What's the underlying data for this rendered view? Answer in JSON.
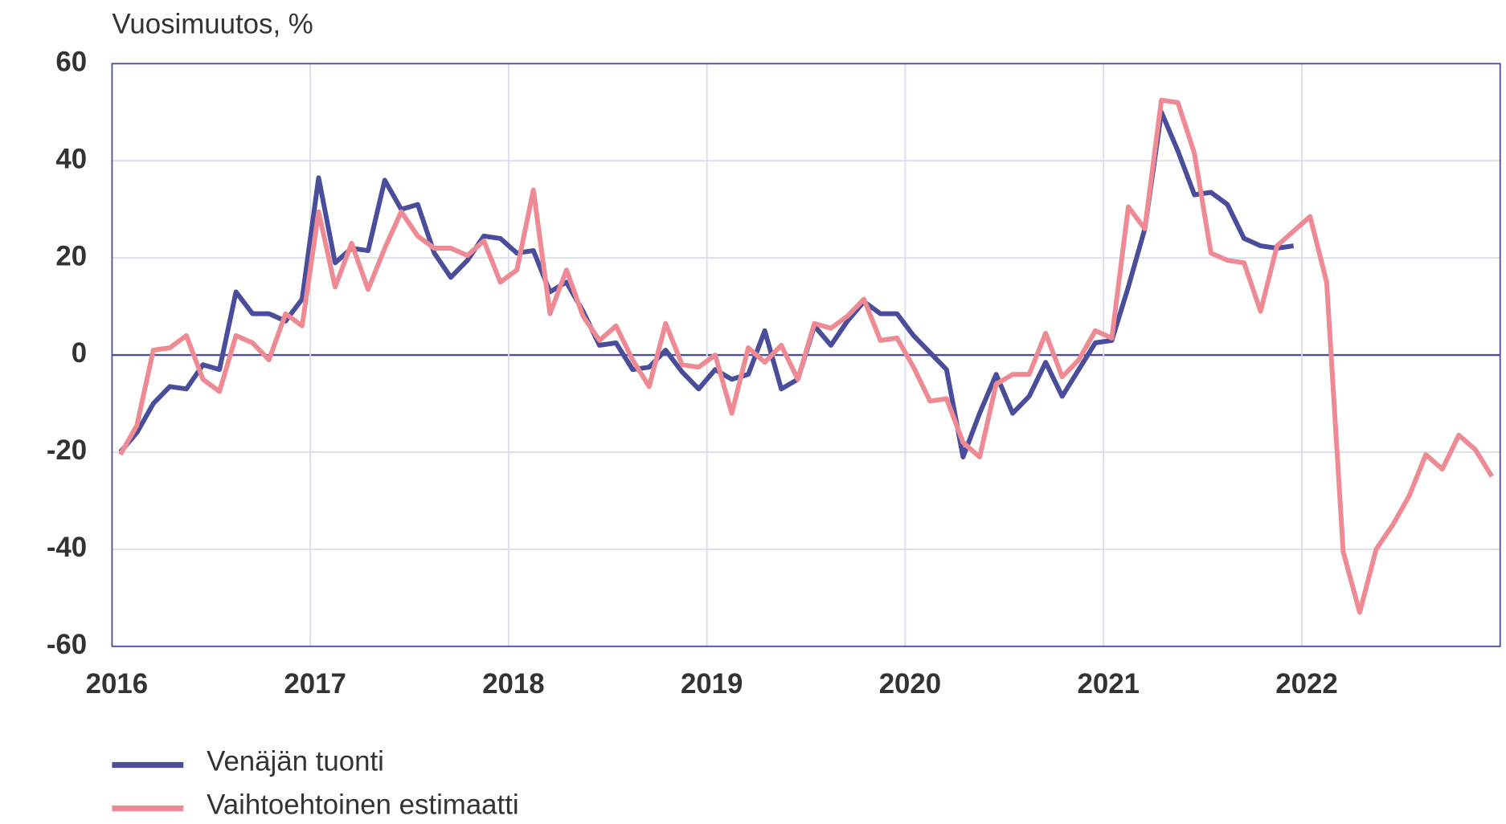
{
  "chart_data": {
    "type": "line",
    "y_label": "Vuosimuutos,  %",
    "categories": [
      "2016",
      null,
      null,
      null,
      null,
      null,
      null,
      null,
      null,
      null,
      null,
      null,
      "2017",
      null,
      null,
      null,
      null,
      null,
      null,
      null,
      null,
      null,
      null,
      null,
      "2018",
      null,
      null,
      null,
      null,
      null,
      null,
      null,
      null,
      null,
      null,
      null,
      "2019",
      null,
      null,
      null,
      null,
      null,
      null,
      null,
      null,
      null,
      null,
      null,
      "2020",
      null,
      null,
      null,
      null,
      null,
      null,
      null,
      null,
      null,
      null,
      null,
      "2021",
      null,
      null,
      null,
      null,
      null,
      null,
      null,
      null,
      null,
      null,
      null,
      "2022",
      null,
      null,
      null,
      null,
      null,
      null,
      null,
      null,
      null,
      null,
      null
    ],
    "series": [
      {
        "name": "Venäjän tuonti",
        "color": "#4a4e9a",
        "values": [
          -20,
          -16,
          -10,
          -6.5,
          -7,
          -2,
          -3,
          13,
          8.5,
          8.5,
          7,
          11.5,
          36.5,
          19,
          22,
          21.5,
          36,
          30,
          31,
          21,
          16,
          19.5,
          24.5,
          24,
          21,
          21.5,
          13,
          15,
          9,
          2,
          2.5,
          -3,
          -2.5,
          1,
          -3.5,
          -7,
          -3,
          -5,
          -4,
          5,
          -7,
          -5,
          6,
          2,
          7,
          11,
          8.5,
          8.5,
          4,
          0.5,
          -3,
          -21,
          -12,
          -4,
          -12,
          -8.5,
          -1.5,
          -8.5,
          -3,
          2.5,
          3,
          14,
          26,
          50,
          42,
          33,
          33.5,
          31,
          24,
          22.5,
          22,
          22.5,
          null,
          null,
          null,
          null,
          null,
          null,
          null,
          null,
          null,
          null,
          null,
          null
        ]
      },
      {
        "name": "Vaihtoehtoinen estimaatti",
        "color": "#ee8a93",
        "values": [
          -20.5,
          -14.5,
          1,
          1.5,
          4,
          -5,
          -7.5,
          4,
          2.5,
          -1,
          8.5,
          6,
          29.5,
          14,
          23,
          13.5,
          22,
          29.5,
          24.5,
          22,
          22,
          20.5,
          23.5,
          15,
          17.5,
          34,
          8.5,
          17.5,
          8,
          3,
          6,
          -1,
          -6.5,
          6.5,
          -2,
          -2.5,
          0,
          -12,
          1.5,
          -1.5,
          2,
          -5,
          6.5,
          5.5,
          8,
          11.5,
          3,
          3.5,
          -2.5,
          -9.5,
          -9,
          -18,
          -21,
          -6,
          -4,
          -4,
          4.5,
          -4.5,
          -1,
          5,
          3.5,
          30.5,
          26,
          52.5,
          52,
          41.5,
          21,
          19.5,
          19,
          9,
          22.5,
          25.5,
          28.5,
          15,
          -40.5,
          -53,
          -40,
          -35,
          -29,
          -20.5,
          -23.5,
          -16.5,
          -19.5,
          -25
        ]
      }
    ],
    "ylim": [
      -60,
      60
    ],
    "yticks": [
      -60,
      -40,
      -20,
      0,
      20,
      40,
      60
    ],
    "grid": true,
    "legend": "bottom"
  }
}
